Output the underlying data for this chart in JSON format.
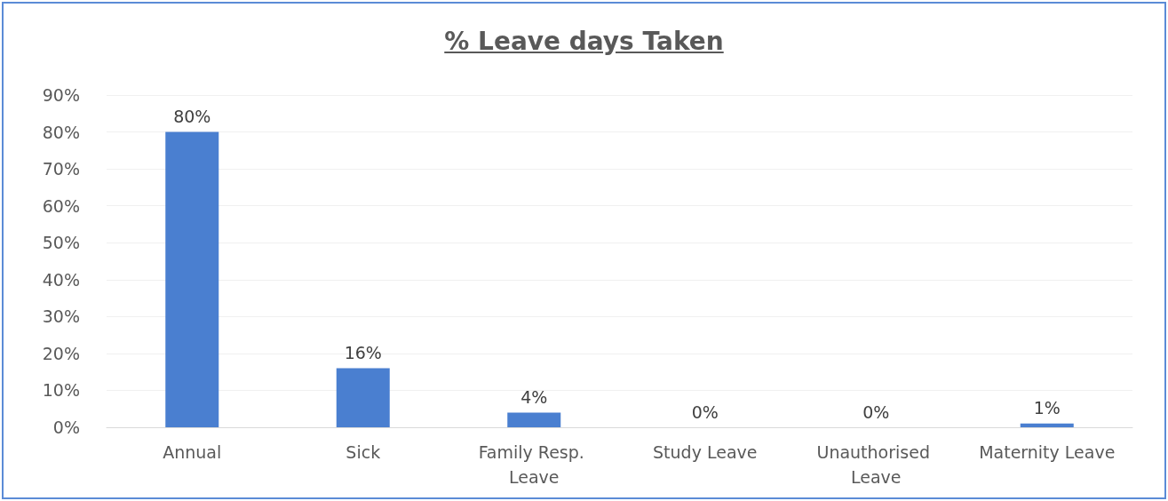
{
  "chart_data": {
    "type": "bar",
    "title": "% Leave days Taken",
    "categories": [
      "Annual",
      "Sick",
      "Family Resp. Leave",
      "Study Leave",
      "Unauthorised Leave",
      "Maternity Leave"
    ],
    "values": [
      80,
      16,
      4,
      0,
      0,
      1
    ],
    "value_labels": [
      "80%",
      "16%",
      "4%",
      "0%",
      "0%",
      "1%"
    ],
    "color": "#4a7fd0",
    "ylim": [
      0,
      90
    ],
    "yticks": [
      {
        "value": 0,
        "label": "0%"
      },
      {
        "value": 10,
        "label": "10%"
      },
      {
        "value": 20,
        "label": "20%"
      },
      {
        "value": 30,
        "label": "30%"
      },
      {
        "value": 40,
        "label": "40%"
      },
      {
        "value": 50,
        "label": "50%"
      },
      {
        "value": 60,
        "label": "60%"
      },
      {
        "value": 70,
        "label": "70%"
      },
      {
        "value": 80,
        "label": "80%"
      },
      {
        "value": 90,
        "label": "90%"
      }
    ],
    "grid": "y"
  }
}
